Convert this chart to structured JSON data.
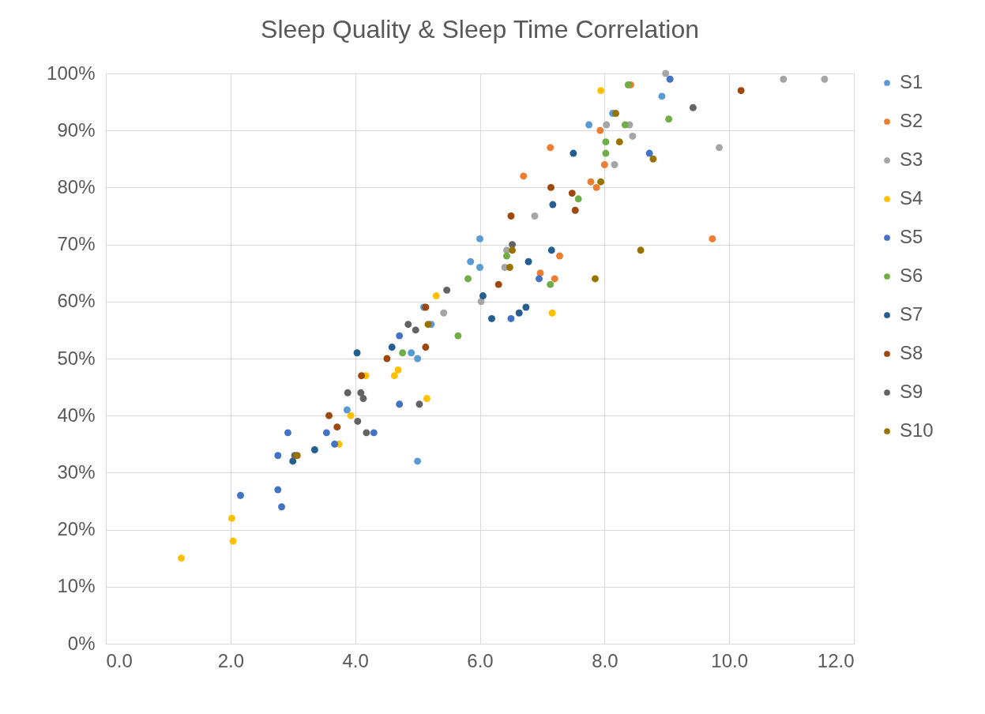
{
  "chart_data": {
    "type": "scatter",
    "title": "Sleep Quality & Sleep Time Correlation",
    "series": [
      {
        "name": "S1",
        "color": "#5b9bd5",
        "x": [
          3.87,
          4.9,
          5.0,
          5.1,
          5.22,
          5.0,
          5.85,
          6.0,
          6.0,
          7.75,
          8.13,
          8.92
        ],
        "values": [
          41,
          51,
          50,
          59,
          56,
          32,
          67,
          71,
          66,
          91,
          93,
          96
        ]
      },
      {
        "name": "S2",
        "color": "#ed7d31",
        "x": [
          8.42,
          7.93,
          7.13,
          8.0,
          6.7,
          7.78,
          7.87,
          9.73,
          7.28,
          6.97,
          7.2
        ],
        "values": [
          98,
          90,
          87,
          84,
          82,
          81,
          80,
          71,
          68,
          65,
          64
        ]
      },
      {
        "name": "S3",
        "color": "#a5a5a5",
        "x": [
          8.98,
          10.87,
          11.53,
          8.03,
          8.4,
          8.45,
          8.16,
          9.84,
          6.88,
          6.43,
          6.4,
          6.02,
          5.42
        ],
        "values": [
          100,
          99,
          99,
          91,
          91,
          89,
          84,
          87,
          75,
          69,
          66,
          60,
          58
        ]
      },
      {
        "name": "S4",
        "color": "#ffc000",
        "x": [
          7.94,
          7.16,
          5.3,
          5.15,
          4.63,
          4.69,
          4.17,
          3.93,
          3.74,
          2.02,
          2.04,
          1.21
        ],
        "values": [
          97,
          58,
          61,
          43,
          47,
          48,
          47,
          40,
          35,
          22,
          18,
          15
        ]
      },
      {
        "name": "S5",
        "color": "#4472c4",
        "x": [
          9.05,
          8.72,
          6.95,
          6.5,
          4.71,
          4.71,
          4.3,
          3.54,
          2.92,
          2.76,
          3.67,
          2.76,
          2.82,
          2.16
        ],
        "values": [
          99,
          86,
          64,
          57,
          54,
          42,
          37,
          37,
          37,
          33,
          35,
          27,
          24,
          26
        ]
      },
      {
        "name": "S6",
        "color": "#70ad47",
        "x": [
          8.38,
          9.03,
          8.33,
          8.02,
          8.02,
          7.58,
          6.43,
          7.13,
          5.81,
          5.65,
          4.76
        ],
        "values": [
          98,
          92,
          91,
          88,
          86,
          78,
          68,
          63,
          64,
          54,
          51
        ]
      },
      {
        "name": "S7",
        "color": "#255e91",
        "x": [
          7.5,
          7.17,
          6.78,
          7.15,
          6.05,
          6.74,
          6.63,
          6.19,
          4.59,
          4.03,
          3.35,
          3.0
        ],
        "values": [
          86,
          77,
          67,
          69,
          61,
          59,
          58,
          57,
          52,
          51,
          34,
          32
        ]
      },
      {
        "name": "S8",
        "color": "#9e480e",
        "x": [
          10.19,
          7.14,
          7.48,
          7.53,
          6.5,
          6.3,
          5.13,
          5.13,
          4.51,
          4.1,
          3.58,
          3.71
        ],
        "values": [
          97,
          80,
          79,
          76,
          75,
          63,
          59,
          52,
          50,
          47,
          40,
          38
        ]
      },
      {
        "name": "S9",
        "color": "#636363",
        "x": [
          9.42,
          6.52,
          5.47,
          4.85,
          4.97,
          3.88,
          4.09,
          4.13,
          4.04,
          4.18,
          5.03,
          3.03
        ],
        "values": [
          94,
          70,
          62,
          56,
          55,
          44,
          44,
          43,
          39,
          37,
          42,
          33
        ]
      },
      {
        "name": "S10",
        "color": "#997300",
        "x": [
          8.18,
          8.24,
          7.94,
          8.78,
          8.58,
          7.85,
          6.52,
          6.48,
          5.17,
          3.07
        ],
        "values": [
          93,
          88,
          81,
          85,
          69,
          64,
          69,
          66,
          56,
          33
        ]
      }
    ],
    "xlim": [
      0,
      12
    ],
    "xticks": [
      {
        "value": 0,
        "label": "0.0"
      },
      {
        "value": 2,
        "label": "2.0"
      },
      {
        "value": 4,
        "label": "4.0"
      },
      {
        "value": 6,
        "label": "6.0"
      },
      {
        "value": 8,
        "label": "8.0"
      },
      {
        "value": 10,
        "label": "10.0"
      },
      {
        "value": 12,
        "label": "12.0"
      }
    ],
    "ylim": [
      0,
      100
    ],
    "yticks": [
      {
        "value": 0,
        "label": "0%"
      },
      {
        "value": 10,
        "label": "10%"
      },
      {
        "value": 20,
        "label": "20%"
      },
      {
        "value": 30,
        "label": "30%"
      },
      {
        "value": 40,
        "label": "40%"
      },
      {
        "value": 50,
        "label": "50%"
      },
      {
        "value": 60,
        "label": "60%"
      },
      {
        "value": 70,
        "label": "70%"
      },
      {
        "value": 80,
        "label": "80%"
      },
      {
        "value": 90,
        "label": "90%"
      },
      {
        "value": 100,
        "label": "100%"
      }
    ],
    "grid": true,
    "legend": "right",
    "marker": "circle"
  }
}
